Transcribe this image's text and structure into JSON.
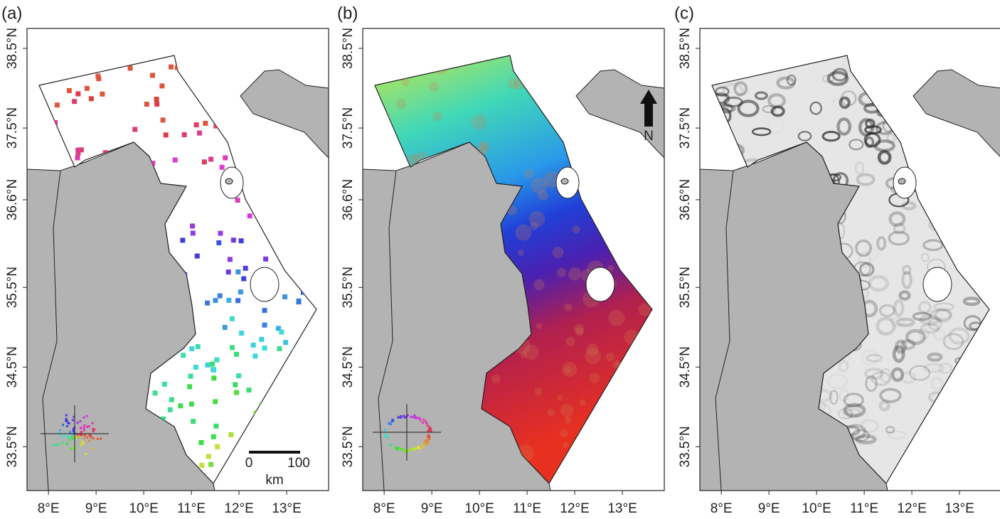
{
  "panels": [
    {
      "label": "(a)"
    },
    {
      "label": "(b)"
    },
    {
      "label": "(c)"
    }
  ],
  "axes": {
    "xlim": [
      7.55,
      13.88
    ],
    "ylim": [
      32.95,
      38.75
    ],
    "xticks": [
      {
        "value": 8,
        "label": "8°E"
      },
      {
        "value": 9,
        "label": "9°E"
      },
      {
        "value": 10,
        "label": "10°E"
      },
      {
        "value": 11,
        "label": "11°E"
      },
      {
        "value": 12,
        "label": "12°E"
      },
      {
        "value": 13,
        "label": "13°E"
      }
    ],
    "yticks": [
      {
        "value": 33.5,
        "label": "33.5°N"
      },
      {
        "value": 34.5,
        "label": "34.5°N"
      },
      {
        "value": 35.5,
        "label": "35.5°N"
      },
      {
        "value": 36.6,
        "label": "36.6°N"
      },
      {
        "value": 37.5,
        "label": "37.5°N"
      },
      {
        "value": 38.5,
        "label": "38.5°N"
      }
    ]
  },
  "scale_bar": {
    "start_label": "0",
    "end_label": "100",
    "unit": "km"
  },
  "north_arrow": {
    "label": "N"
  }
}
